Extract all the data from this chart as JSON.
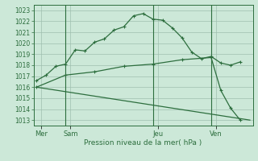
{
  "bg_color": "#cce8d8",
  "grid_color": "#9fbfaf",
  "line_color": "#2d6e3e",
  "xlabel": "Pression niveau de la mer( hPa )",
  "ylim": [
    1012.5,
    1023.5
  ],
  "ytick_min": 1013,
  "ytick_max": 1023,
  "xlim": [
    -0.3,
    22.3
  ],
  "day_labels": [
    "Mer",
    "Sam",
    "Jeu",
    "Ven"
  ],
  "day_positions": [
    0.5,
    3.5,
    12.5,
    18.5
  ],
  "vline_positions": [
    3,
    12,
    18
  ],
  "series1_x": [
    0,
    1,
    2,
    3,
    4,
    5,
    6,
    7,
    8,
    9,
    10,
    11,
    12,
    13,
    14,
    15,
    16,
    17,
    18,
    19,
    20,
    21
  ],
  "series1_y": [
    1016.6,
    1017.1,
    1017.9,
    1018.1,
    1019.4,
    1019.3,
    1020.1,
    1020.4,
    1021.2,
    1021.5,
    1022.5,
    1022.7,
    1022.2,
    1022.1,
    1021.4,
    1020.5,
    1019.2,
    1018.6,
    1018.8,
    1018.2,
    1018.0,
    1018.3
  ],
  "series2_x": [
    0,
    3,
    6,
    9,
    12,
    15,
    18,
    19,
    20,
    21
  ],
  "series2_y": [
    1016.0,
    1017.1,
    1017.4,
    1017.9,
    1018.1,
    1018.5,
    1018.7,
    1015.7,
    1014.1,
    1013.0
  ],
  "series3_x": [
    0,
    22
  ],
  "series3_y": [
    1016.0,
    1013.0
  ]
}
